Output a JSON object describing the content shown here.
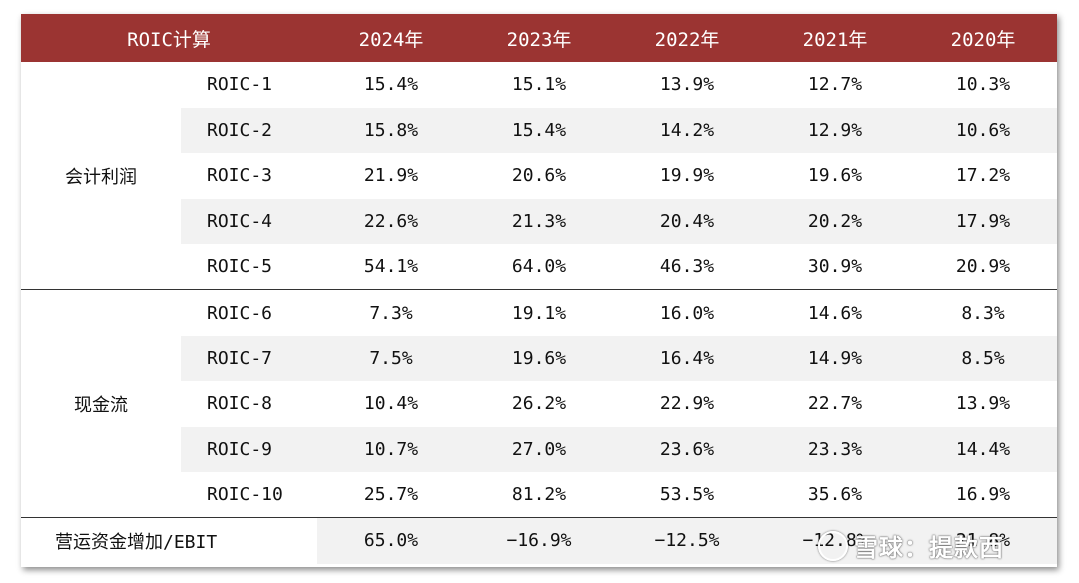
{
  "header": {
    "title": "ROIC计算",
    "years": [
      "2024年",
      "2023年",
      "2022年",
      "2021年",
      "2020年"
    ]
  },
  "groups": {
    "accounting": "会计利润",
    "cashflow": "现金流",
    "working_capital": "营运资金增加/EBIT"
  },
  "rows": [
    {
      "metric": "ROIC-1",
      "values": [
        "15.4%",
        "15.1%",
        "13.9%",
        "12.7%",
        "10.3%"
      ]
    },
    {
      "metric": "ROIC-2",
      "values": [
        "15.8%",
        "15.4%",
        "14.2%",
        "12.9%",
        "10.6%"
      ]
    },
    {
      "metric": "ROIC-3",
      "values": [
        "21.9%",
        "20.6%",
        "19.9%",
        "19.6%",
        "17.2%"
      ]
    },
    {
      "metric": "ROIC-4",
      "values": [
        "22.6%",
        "21.3%",
        "20.4%",
        "20.2%",
        "17.9%"
      ]
    },
    {
      "metric": "ROIC-5",
      "values": [
        "54.1%",
        "64.0%",
        "46.3%",
        "30.9%",
        "20.9%"
      ]
    },
    {
      "metric": "ROIC-6",
      "values": [
        "7.3%",
        "19.1%",
        "16.0%",
        "14.6%",
        "8.3%"
      ]
    },
    {
      "metric": "ROIC-7",
      "values": [
        "7.5%",
        "19.6%",
        "16.4%",
        "14.9%",
        "8.5%"
      ]
    },
    {
      "metric": "ROIC-8",
      "values": [
        "10.4%",
        "26.2%",
        "22.9%",
        "22.7%",
        "13.9%"
      ]
    },
    {
      "metric": "ROIC-9",
      "values": [
        "10.7%",
        "27.0%",
        "23.6%",
        "23.3%",
        "14.4%"
      ]
    },
    {
      "metric": "ROIC-10",
      "values": [
        "25.7%",
        "81.2%",
        "53.5%",
        "35.6%",
        "16.9%"
      ]
    }
  ],
  "working_capital_values": [
    "65.0%",
    "−16.9%",
    "−12.5%",
    "−12.8%",
    "21.8%"
  ],
  "watermark": "雪球：提款西",
  "colors": {
    "header_bg": "#9b3432",
    "header_text": "#ffffff",
    "stripe": "#f2f2f2"
  }
}
